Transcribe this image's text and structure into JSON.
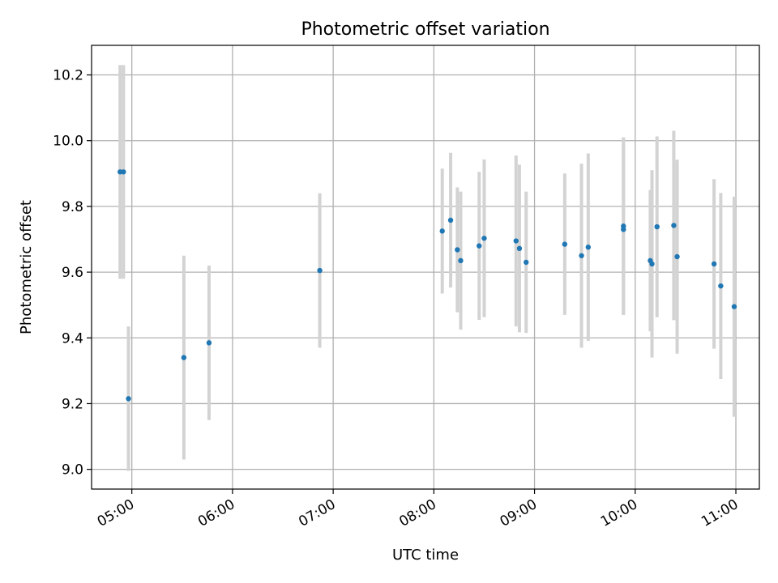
{
  "chart_data": {
    "type": "scatter",
    "title": "Photometric offset variation",
    "xlabel": "UTC time",
    "ylabel": "Photometric offset",
    "x_ticks": [
      "05:00",
      "06:00",
      "07:00",
      "08:00",
      "09:00",
      "10:00",
      "11:00"
    ],
    "y_ticks": [
      "9.0",
      "9.2",
      "9.4",
      "9.6",
      "9.8",
      "10.0",
      "10.2"
    ],
    "xlim": [
      "04:36",
      "11:14"
    ],
    "ylim": [
      8.94,
      10.29
    ],
    "grid": true,
    "marker_color": "#1f77b4",
    "errorbar_color": "#d3d3d3",
    "series": [
      {
        "points": [
          {
            "x": "04:53",
            "y": 9.905,
            "err": 0.325
          },
          {
            "x": "04:55",
            "y": 9.905,
            "err": 0.325
          },
          {
            "x": "04:58",
            "y": 9.215,
            "err": 0.22
          },
          {
            "x": "05:31",
            "y": 9.34,
            "err": 0.31
          },
          {
            "x": "05:46",
            "y": 9.385,
            "err": 0.235
          },
          {
            "x": "06:52",
            "y": 9.605,
            "err": 0.235
          },
          {
            "x": "08:05",
            "y": 9.725,
            "err": 0.19
          },
          {
            "x": "08:10",
            "y": 9.758,
            "err": 0.205
          },
          {
            "x": "08:14",
            "y": 9.668,
            "err": 0.19
          },
          {
            "x": "08:16",
            "y": 9.635,
            "err": 0.21
          },
          {
            "x": "08:27",
            "y": 9.68,
            "err": 0.225
          },
          {
            "x": "08:30",
            "y": 9.703,
            "err": 0.24
          },
          {
            "x": "08:49",
            "y": 9.695,
            "err": 0.26
          },
          {
            "x": "08:51",
            "y": 9.672,
            "err": 0.255
          },
          {
            "x": "08:55",
            "y": 9.63,
            "err": 0.215
          },
          {
            "x": "09:18",
            "y": 9.685,
            "err": 0.215
          },
          {
            "x": "09:28",
            "y": 9.65,
            "err": 0.28
          },
          {
            "x": "09:32",
            "y": 9.676,
            "err": 0.285
          },
          {
            "x": "09:53",
            "y": 9.74,
            "err": 0.27
          },
          {
            "x": "09:53",
            "y": 9.73,
            "err": 0.26
          },
          {
            "x": "10:09",
            "y": 9.635,
            "err": 0.215
          },
          {
            "x": "10:10",
            "y": 9.625,
            "err": 0.285
          },
          {
            "x": "10:13",
            "y": 9.738,
            "err": 0.275
          },
          {
            "x": "10:23",
            "y": 9.742,
            "err": 0.288
          },
          {
            "x": "10:25",
            "y": 9.647,
            "err": 0.295
          },
          {
            "x": "10:47",
            "y": 9.625,
            "err": 0.258
          },
          {
            "x": "10:51",
            "y": 9.558,
            "err": 0.283
          },
          {
            "x": "10:59",
            "y": 9.495,
            "err": 0.335
          }
        ]
      }
    ]
  }
}
